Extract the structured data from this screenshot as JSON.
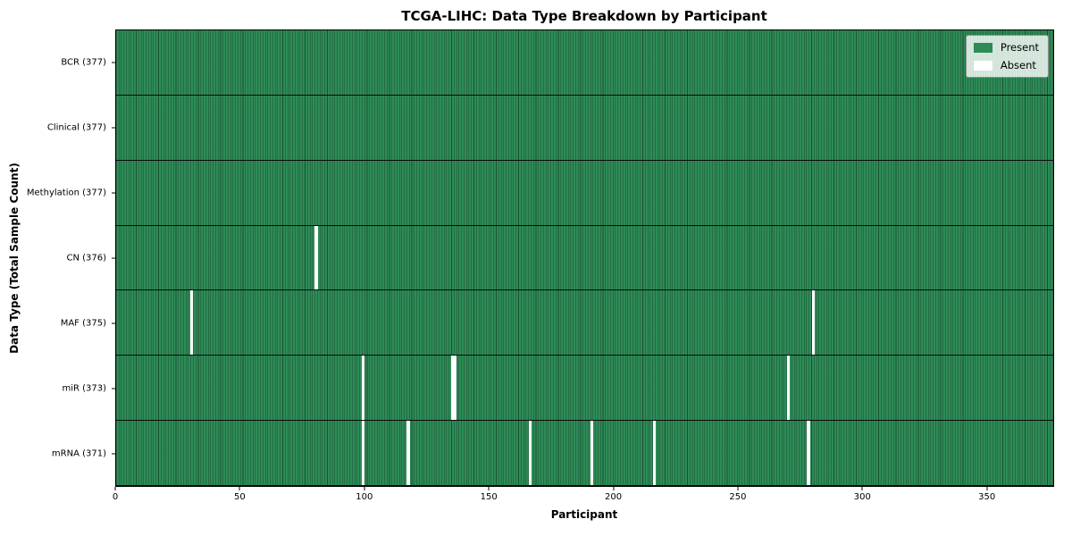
{
  "chart_data": {
    "type": "heatmap",
    "title": "TCGA-LIHC: Data Type Breakdown by Participant",
    "xlabel": "Participant",
    "ylabel": "Data Type (Total Sample Count)",
    "x_range": [
      0,
      377
    ],
    "x_ticks": [
      0,
      50,
      100,
      150,
      200,
      250,
      300,
      350
    ],
    "total_participants": 377,
    "grid": false,
    "legend_position": "upper right",
    "legend": [
      {
        "label": "Present",
        "color": "#2e8b57"
      },
      {
        "label": "Absent",
        "color": "#ffffff"
      }
    ],
    "rows": [
      {
        "name": "bcr",
        "label": "BCR (377)",
        "present_count": 377,
        "absent_participants": []
      },
      {
        "name": "clinical",
        "label": "Clinical (377)",
        "present_count": 377,
        "absent_participants": []
      },
      {
        "name": "methylation",
        "label": "Methylation (377)",
        "present_count": 377,
        "absent_participants": []
      },
      {
        "name": "cn",
        "label": "CN (376)",
        "present_count": 376,
        "absent_participants": [
          80
        ]
      },
      {
        "name": "maf",
        "label": "MAF (375)",
        "present_count": 375,
        "absent_participants": [
          30,
          280
        ]
      },
      {
        "name": "mir",
        "label": "miR (373)",
        "present_count": 373,
        "absent_participants": [
          99,
          135,
          136,
          270
        ]
      },
      {
        "name": "mrna",
        "label": "mRNA (371)",
        "present_count": 371,
        "absent_participants": [
          99,
          117,
          166,
          191,
          216,
          278
        ]
      }
    ],
    "colors": {
      "present": "#2e8b57",
      "absent": "#ffffff",
      "cell_edge": "rgba(4,24,14,0.5)",
      "row_separator": "#0b0b0b",
      "plot_border": "#000000"
    }
  }
}
